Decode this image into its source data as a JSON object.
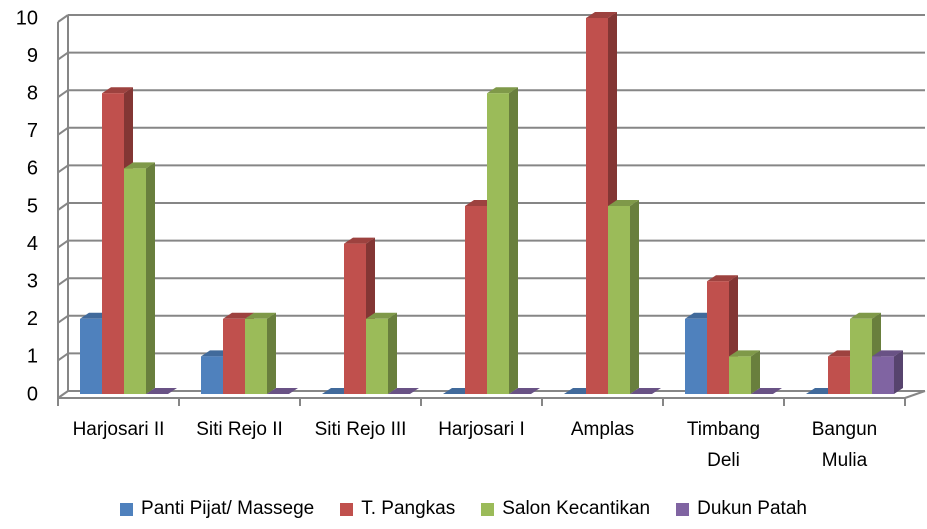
{
  "chart_data": {
    "type": "bar3d",
    "categories": [
      "Harjosari II",
      "Siti Rejo II",
      "Siti Rejo III",
      "Harjosari I",
      "Amplas",
      "Timbang Deli",
      "Bangun Mulia"
    ],
    "series": [
      {
        "name": "Panti Pijat/ Massege",
        "color": "#4f81bd",
        "values": [
          2,
          1,
          0,
          0,
          0,
          2,
          0
        ]
      },
      {
        "name": "T. Pangkas",
        "color": "#c0504d",
        "values": [
          8,
          2,
          4,
          5,
          10,
          3,
          1
        ]
      },
      {
        "name": "Salon Kecantikan",
        "color": "#9bbb59",
        "values": [
          6,
          2,
          2,
          8,
          5,
          1,
          2
        ]
      },
      {
        "name": "Dukun Patah",
        "color": "#8064a2",
        "values": [
          0,
          0,
          0,
          0,
          0,
          0,
          1
        ]
      }
    ],
    "ylim": [
      0,
      10
    ],
    "yticks": [
      0,
      1,
      2,
      3,
      4,
      5,
      6,
      7,
      8,
      9,
      10
    ],
    "grid": true,
    "legend": "bottom"
  }
}
